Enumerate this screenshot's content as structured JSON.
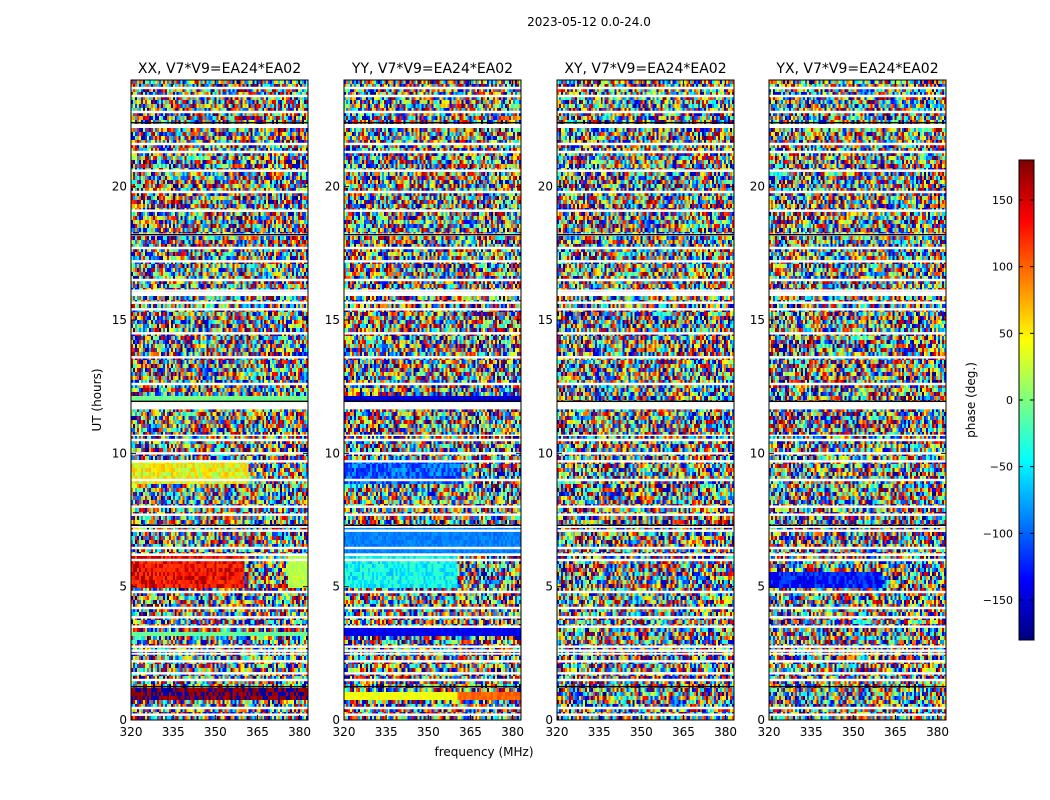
{
  "figure": {
    "suptitle": "2023-05-12 0.0-24.0",
    "xlabel": "frequency (MHz)",
    "ylabel": "UT (hours)"
  },
  "chart_data": [
    {
      "type": "heatmap",
      "title": "XX, V7*V9=EA24*EA02",
      "xticks": [
        "320",
        "335",
        "350",
        "365",
        "380"
      ],
      "xlim": [
        320,
        383
      ],
      "yticks": [
        "0",
        "5",
        "10",
        "15",
        "20"
      ],
      "ylim": [
        0,
        24
      ],
      "coherent_bands": [
        {
          "t0": 0.8,
          "t1": 1.2,
          "f0": 320,
          "f1": 383,
          "phase": 170,
          "alt": -165
        },
        {
          "t0": 3.1,
          "t1": 3.3,
          "f0": 320,
          "f1": 383,
          "phase": -10
        },
        {
          "t0": 4.9,
          "t1": 6.1,
          "f0": 320,
          "f1": 360,
          "phase": 120,
          "alt": 160
        },
        {
          "t0": 4.9,
          "t1": 6.1,
          "f0": 376,
          "f1": 383,
          "phase": 20
        },
        {
          "t0": 8.9,
          "t1": 9.7,
          "f0": 320,
          "f1": 362,
          "phase": 60,
          "alt": 15
        },
        {
          "t0": 11.9,
          "t1": 12.1,
          "f0": 320,
          "f1": 383,
          "phase": -5
        }
      ]
    },
    {
      "type": "heatmap",
      "title": "YY, V7*V9=EA24*EA02",
      "xticks": [
        "320",
        "335",
        "350",
        "365",
        "380"
      ],
      "xlim": [
        320,
        383
      ],
      "yticks": [
        "0",
        "5",
        "10",
        "15",
        "20"
      ],
      "ylim": [
        0,
        24
      ],
      "coherent_bands": [
        {
          "t0": 0.7,
          "t1": 1.1,
          "f0": 320,
          "f1": 360,
          "phase": 40
        },
        {
          "t0": 0.7,
          "t1": 1.1,
          "f0": 360,
          "f1": 383,
          "phase": 100
        },
        {
          "t0": 3.1,
          "t1": 3.4,
          "f0": 320,
          "f1": 383,
          "phase": -140
        },
        {
          "t0": 4.9,
          "t1": 6.2,
          "f0": 320,
          "f1": 360,
          "phase": -30,
          "alt": -60
        },
        {
          "t0": 6.2,
          "t1": 7.2,
          "f0": 320,
          "f1": 383,
          "phase": -90
        },
        {
          "t0": 8.9,
          "t1": 9.7,
          "f0": 320,
          "f1": 362,
          "phase": -120,
          "alt": -80
        },
        {
          "t0": 11.8,
          "t1": 12.1,
          "f0": 320,
          "f1": 383,
          "phase": -150
        }
      ]
    },
    {
      "type": "heatmap",
      "title": "XY, V7*V9=EA24*EA02",
      "xticks": [
        "320",
        "335",
        "350",
        "365",
        "380"
      ],
      "xlim": [
        320,
        383
      ],
      "yticks": [
        "0",
        "5",
        "10",
        "15",
        "20"
      ],
      "ylim": [
        0,
        24
      ],
      "coherent_bands": []
    },
    {
      "type": "heatmap",
      "title": "YX, V7*V9=EA24*EA02",
      "xticks": [
        "320",
        "335",
        "350",
        "365",
        "380"
      ],
      "xlim": [
        320,
        383
      ],
      "yticks": [
        "0",
        "5",
        "10",
        "15",
        "20"
      ],
      "ylim": [
        0,
        24
      ],
      "coherent_bands": [
        {
          "t0": 4.9,
          "t1": 5.6,
          "f0": 320,
          "f1": 360,
          "phase": -140,
          "alt": -110
        }
      ]
    }
  ],
  "flagged_hours": [
    0.2,
    0.45,
    1.5,
    1.75,
    2.2,
    2.6,
    2.75,
    3.5,
    3.85,
    4.2,
    4.8,
    6.0,
    6.45,
    7.1,
    7.25,
    7.7,
    8.0,
    9.0,
    9.7,
    10.0,
    10.5,
    11.9,
    12.6,
    13.6,
    14.5,
    15.4,
    15.65,
    16.1,
    16.5,
    17.2,
    17.7,
    18.2,
    19.1,
    19.8,
    20.6,
    21.3,
    21.6,
    22.3,
    22.8,
    23.4,
    23.7
  ],
  "flagged_ranges": [
    [
      11.65,
      11.9
    ],
    [
      10.65,
      10.7
    ],
    [
      15.9,
      16.05
    ],
    [
      22.2,
      22.35
    ],
    [
      6.15,
      6.25
    ],
    [
      2.45,
      2.52
    ]
  ],
  "colorbar": {
    "label": "phase (deg.)",
    "range": [
      -180,
      180
    ],
    "ticks": [
      "150",
      "100",
      "50",
      "0",
      "−50",
      "−100",
      "−150"
    ],
    "tick_values": [
      150,
      100,
      50,
      0,
      -50,
      -100,
      -150
    ],
    "colormap": "jet",
    "colors": [
      "#00007f",
      "#0000ff",
      "#007fff",
      "#00ffff",
      "#7fff7f",
      "#ffff00",
      "#ff7f00",
      "#ff0000",
      "#7f0000"
    ]
  }
}
